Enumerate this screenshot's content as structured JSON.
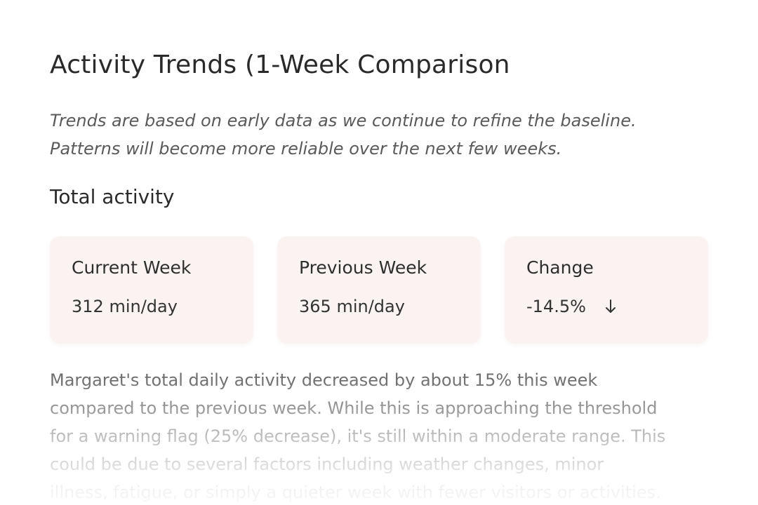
{
  "header": {
    "title": "Activity Trends (1-Week Comparison",
    "subtitle_lines": [
      "Trends are based on early data as we continue to refine the baseline.",
      "Patterns will become more reliable over the next few weeks."
    ]
  },
  "section": {
    "heading": "Total activity"
  },
  "cards": [
    {
      "label": "Current Week",
      "value": "312 min/day"
    },
    {
      "label": "Previous Week",
      "value": "365 min/day"
    },
    {
      "label": "Change",
      "value": "-14.5%",
      "icon": "arrow-down-icon"
    }
  ],
  "summary": {
    "lines": [
      "Margaret's total daily activity decreased by about 15% this week",
      "compared to the previous week. While this is approaching the threshold",
      "for a warning flag (25% decrease), it's still within a moderate range. This",
      "could be due to several factors including weather changes, minor",
      "illness, fatigue, or simply a quieter week with fewer visitors or activities."
    ]
  },
  "colors": {
    "card_background": "#faf3f1",
    "text_primary": "#2a2a2a",
    "text_secondary": "#6e6e6e"
  }
}
